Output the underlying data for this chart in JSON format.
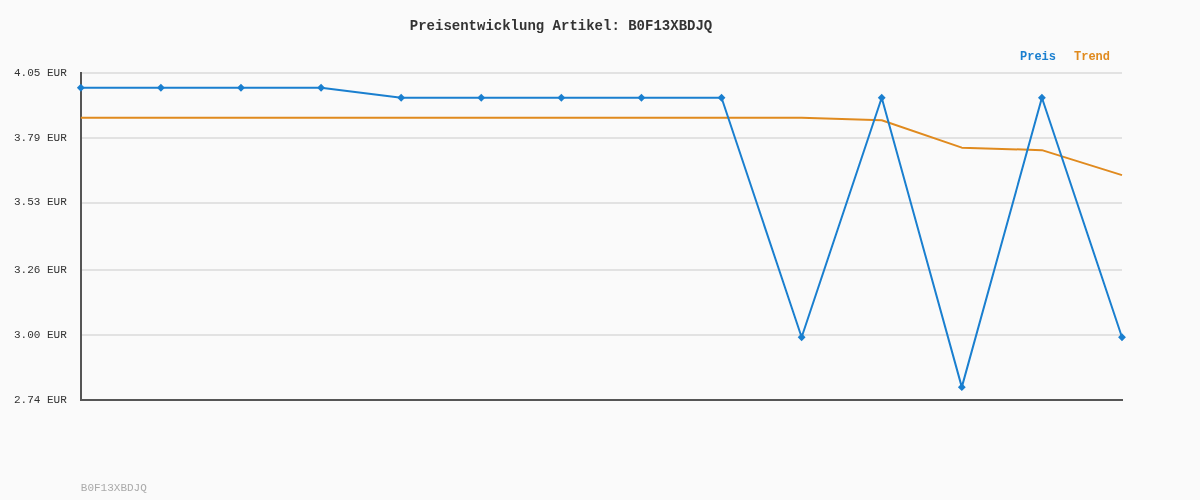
{
  "chart_data": {
    "type": "line",
    "title": "Preisentwicklung Artikel: B0F13XBDJQ",
    "categories": [
      null,
      null,
      null,
      null,
      null,
      null,
      null,
      null,
      null,
      null,
      null,
      null,
      null,
      null
    ],
    "series": [
      {
        "name": "Preis",
        "color": "#1a7fcf",
        "marker": "diamond",
        "values": [
          3.99,
          3.99,
          3.99,
          3.99,
          3.95,
          3.95,
          3.95,
          3.95,
          3.95,
          2.99,
          3.95,
          2.79,
          3.95,
          2.99
        ]
      },
      {
        "name": "Trend",
        "color": "#e08a1e",
        "marker": "none",
        "values": [
          3.87,
          3.87,
          3.87,
          3.87,
          3.87,
          3.87,
          3.87,
          3.87,
          3.87,
          3.87,
          3.86,
          3.75,
          3.74,
          3.64
        ]
      }
    ],
    "ylim": [
      2.74,
      4.05
    ],
    "yticks": [
      {
        "value": 2.74,
        "label": "2.74 EUR"
      },
      {
        "value": 3.0,
        "label": "3.00 EUR"
      },
      {
        "value": 3.26,
        "label": "3.26 EUR"
      },
      {
        "value": 3.53,
        "label": "3.53 EUR"
      },
      {
        "value": 3.79,
        "label": "3.79 EUR"
      },
      {
        "value": 4.05,
        "label": "4.05 EUR"
      }
    ],
    "grid": "y",
    "legend": "top right",
    "line_style": "solid",
    "annotations": [
      "B0F13XBDJQ"
    ]
  }
}
